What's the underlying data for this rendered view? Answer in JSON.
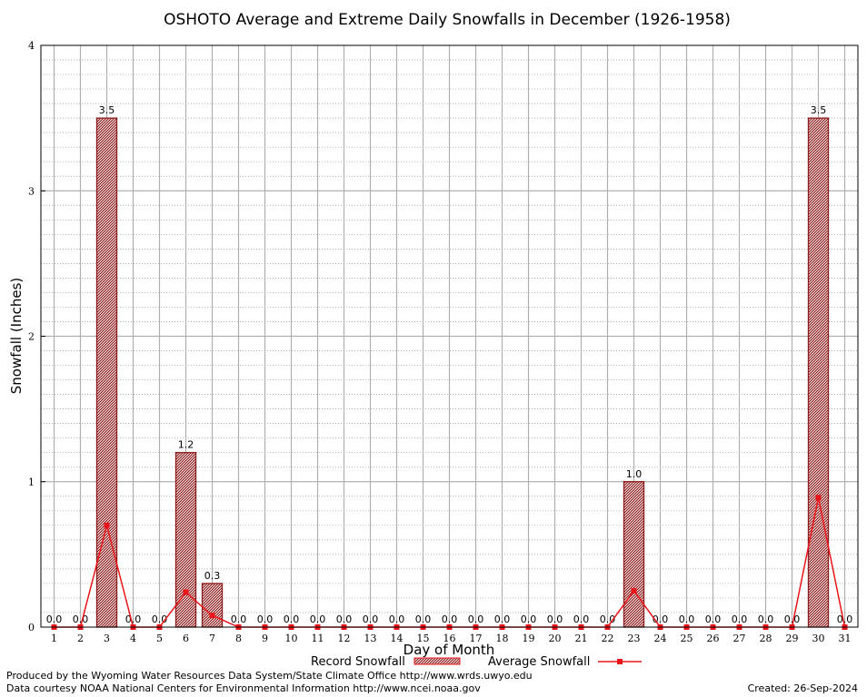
{
  "chart_data": {
    "type": "bar",
    "title": "OSHOTO Average and Extreme Daily Snowfalls in December (1926-1958)",
    "xlabel": "Day of Month",
    "ylabel": "Snowfall (Inches)",
    "ylim": [
      0,
      4
    ],
    "yticks": [
      "0",
      "1",
      "2",
      "3",
      "4"
    ],
    "grid": true,
    "categories": [
      "1",
      "2",
      "3",
      "4",
      "5",
      "6",
      "7",
      "8",
      "9",
      "10",
      "11",
      "12",
      "13",
      "14",
      "15",
      "16",
      "17",
      "18",
      "19",
      "20",
      "21",
      "22",
      "23",
      "24",
      "25",
      "26",
      "27",
      "28",
      "29",
      "30",
      "31"
    ],
    "series": [
      {
        "name": "Record Snowfall",
        "kind": "bar",
        "values": [
          0,
          0,
          3.5,
          0,
          0,
          1.2,
          0.3,
          0,
          0,
          0,
          0,
          0,
          0,
          0,
          0,
          0,
          0,
          0,
          0,
          0,
          0,
          0,
          1.0,
          0,
          0,
          0,
          0,
          0,
          0,
          3.5,
          0
        ],
        "labels": [
          "0.0",
          "0.0",
          "3.5",
          "0.0",
          "0.0",
          "1.2",
          "0.3",
          "0.0",
          "0.0",
          "0.0",
          "0.0",
          "0.0",
          "0.0",
          "0.0",
          "0.0",
          "0.0",
          "0.0",
          "0.0",
          "0.0",
          "0.0",
          "0.0",
          "0.0",
          "1.0",
          "0.0",
          "0.0",
          "0.0",
          "0.0",
          "0.0",
          "0.0",
          "3.5",
          "0.0"
        ],
        "color": "#8b1a1a"
      },
      {
        "name": "Average Snowfall",
        "kind": "line",
        "values": [
          0,
          0,
          0.7,
          0,
          0,
          0.24,
          0.08,
          0,
          0,
          0,
          0,
          0,
          0,
          0,
          0,
          0,
          0,
          0,
          0,
          0,
          0,
          0,
          0.25,
          0,
          0,
          0,
          0,
          0,
          0,
          0.89,
          0
        ],
        "color": "#e8161b"
      }
    ],
    "legend_position": "bottom"
  },
  "footer": {
    "line1": "Produced by the Wyoming Water Resources Data System/State Climate Office http://www.wrds.uwyo.edu",
    "line2": "Data courtesy NOAA National Centers for Environmental Information http://www.ncei.noaa.gov",
    "created": "Created:  26-Sep-2024"
  }
}
